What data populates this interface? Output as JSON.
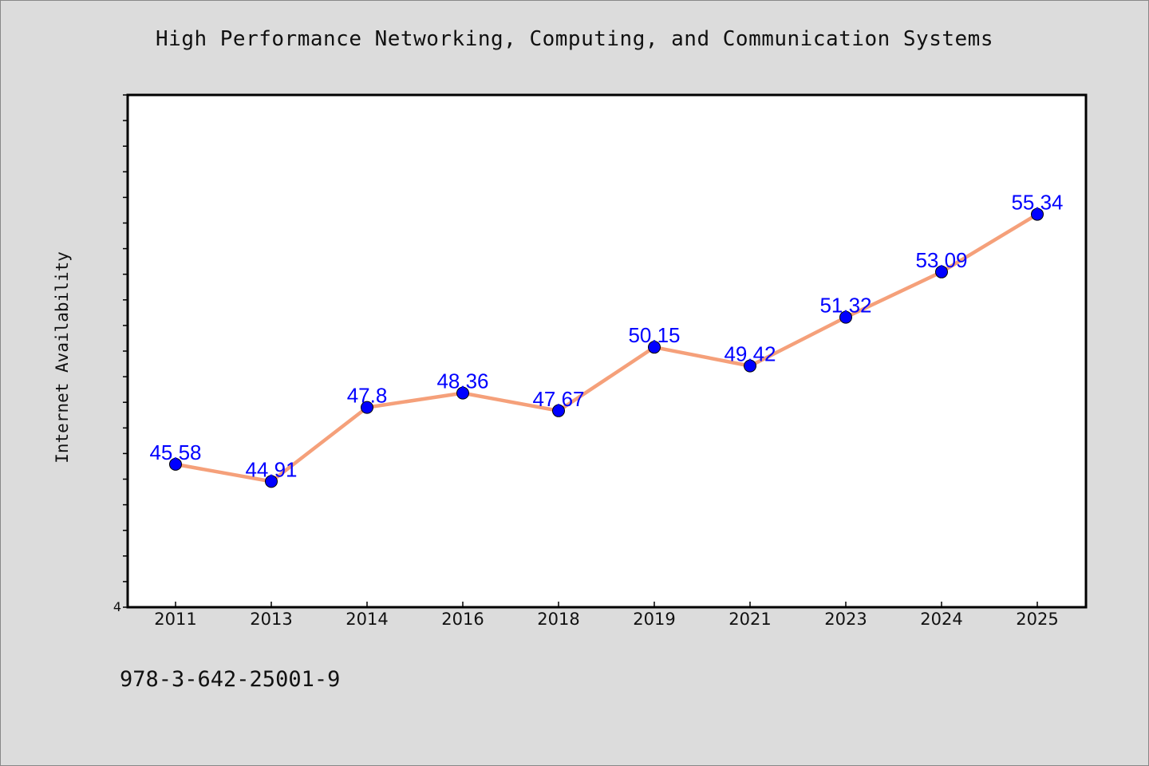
{
  "chart_data": {
    "type": "line",
    "title": "High Performance Networking, Computing, and Communication Systems",
    "ylabel": "Internet Availability",
    "xlabel": "",
    "categories": [
      "2011",
      "2013",
      "2014",
      "2016",
      "2018",
      "2019",
      "2021",
      "2023",
      "2024",
      "2025"
    ],
    "series": [
      {
        "values": [
          45.58,
          44.91,
          47.8,
          48.36,
          47.67,
          50.15,
          49.42,
          51.32,
          53.09,
          55.34
        ],
        "data_labels": [
          "45.58",
          "44.91",
          "47.8",
          "48.36",
          "47.67",
          "50.15",
          "49.42",
          "51.32",
          "53.09",
          "55.34"
        ],
        "line_color": "#f5a07a",
        "marker_color": "#0000ff"
      }
    ],
    "y_tick_labels": [
      "4"
    ],
    "ylim": [
      40,
      60
    ],
    "grid": false,
    "legend": "none"
  },
  "footer": {
    "isbn": "978-3-642-25001-9"
  },
  "colors": {
    "background": "#dcdcdc",
    "plot_background": "#ffffff",
    "line": "#f5a07a",
    "marker": "#0000ff",
    "data_label": "#0000ff"
  }
}
